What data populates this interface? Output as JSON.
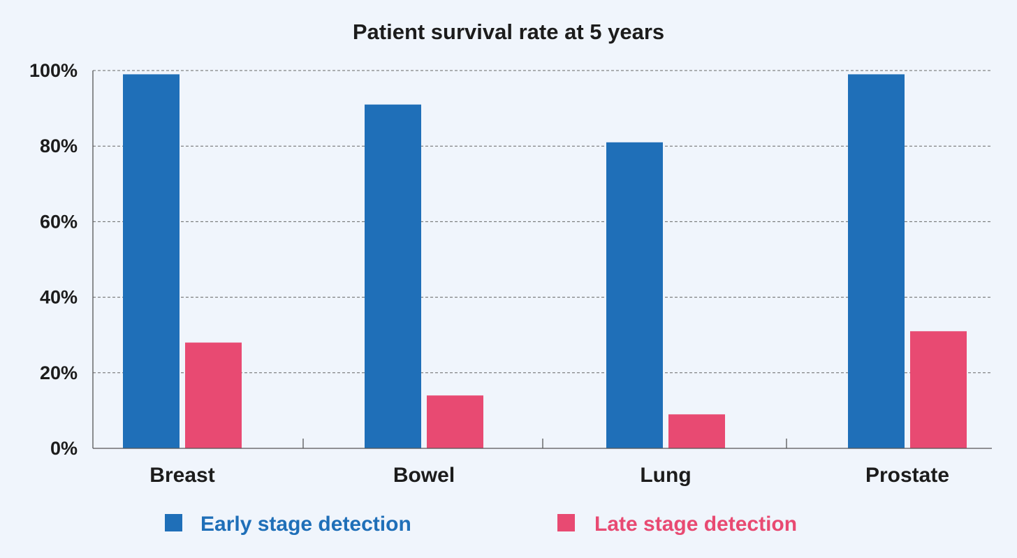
{
  "chart_data": {
    "type": "bar",
    "title": "Patient survival rate at 5 years",
    "categories": [
      "Breast",
      "Bowel",
      "Lung",
      "Prostate"
    ],
    "series": [
      {
        "name": "Early stage detection",
        "values": [
          99,
          91,
          81,
          99
        ],
        "color": "#1f6fb8"
      },
      {
        "name": "Late stage detection",
        "values": [
          28,
          14,
          9,
          31
        ],
        "color": "#e84a72"
      }
    ],
    "ylim": [
      0,
      100
    ],
    "yticks": [
      "0%",
      "20%",
      "40%",
      "60%",
      "80%",
      "100%"
    ],
    "ytick_values": [
      0,
      20,
      40,
      60,
      80,
      100
    ],
    "xlabel": "",
    "ylabel": "",
    "grid": true,
    "legend_position": "bottom"
  }
}
